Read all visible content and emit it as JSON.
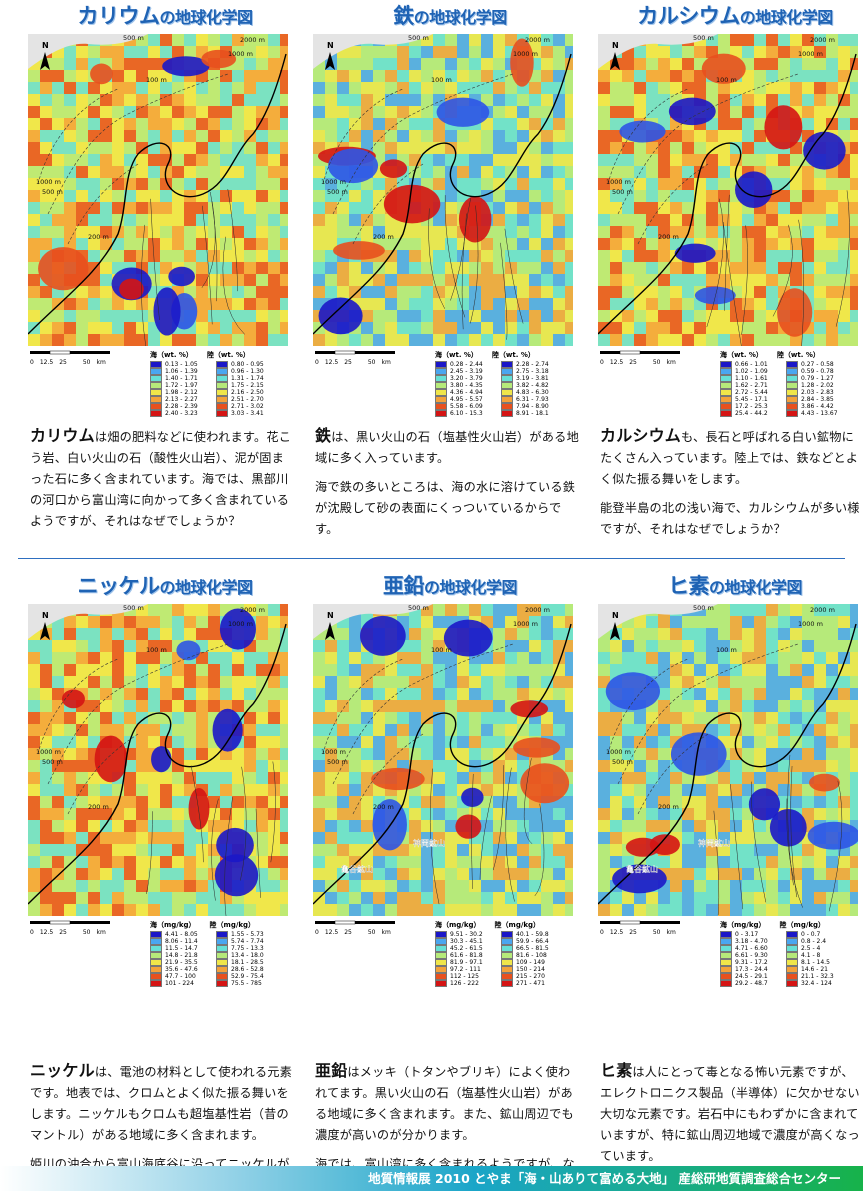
{
  "colors": {
    "sea": [
      "#1b17c8",
      "#2e55e6",
      "#4aa6f0",
      "#66e0d6",
      "#b6ea7a",
      "#f0e64a",
      "#f4a23a",
      "#e8501e",
      "#d41414"
    ],
    "land": [
      "#1b17c8",
      "#2e55e6",
      "#4aa6f0",
      "#66e0d6",
      "#b6ea7a",
      "#f0e64a",
      "#f4a23a",
      "#e8501e",
      "#d41414"
    ]
  },
  "map_labels": {
    "north": "N",
    "c500": "500 m",
    "c2000": "2000 m",
    "c1000": "1000 m",
    "c100": "100 m",
    "c200": "200 m"
  },
  "scale": {
    "t0": "0",
    "t1": "12.5",
    "t2": "25",
    "t3": "50",
    "unit": "km"
  },
  "panels": [
    {
      "title_el": "カリウム",
      "title_suffix": "の地球化学図",
      "sea_head": "海（wt. %）",
      "land_head": "陸（wt. %）",
      "sea": [
        "0.13 - 1.05",
        "1.06 - 1.39",
        "1.40 - 1.71",
        "1.72 - 1.97",
        "1.98 - 2.12",
        "2.13 - 2.27",
        "2.28 - 2.39",
        "2.40 - 3.23"
      ],
      "land": [
        "0.80 - 0.95",
        "0.96 - 1.30",
        "1.31 - 1.74",
        "1.75 - 2.15",
        "2.16 - 2.50",
        "2.51 - 2.70",
        "2.71 - 3.02",
        "3.03 - 3.41"
      ],
      "desc_el": "カリウム",
      "desc_p1": "は畑の肥料などに使われます。花こう岩、白い火山の石（酸性火山岩）、泥が固まった石に多く含まれています。海では、黒部川の河口から富山湾に向かって多く含まれているようですが、それはなぜでしょうか？",
      "desc_p2": ""
    },
    {
      "title_el": "鉄",
      "title_suffix": "の地球化学図",
      "sea_head": "海（wt. %）",
      "land_head": "陸（wt. %）",
      "sea": [
        "0.28 - 2.44",
        "2.45 - 3.19",
        "3.20 - 3.79",
        "3.80 - 4.35",
        "4.36 - 4.94",
        "4.95 - 5.57",
        "5.58 - 6.09",
        "6.10 - 15.3"
      ],
      "land": [
        "2.28 - 2.74",
        "2.75 - 3.18",
        "3.19 - 3.81",
        "3.82 - 4.82",
        "4.83 - 6.30",
        "6.31 - 7.93",
        "7.94 - 8.90",
        "8.91 - 18.1"
      ],
      "desc_el": "鉄",
      "desc_p1": "は、黒い火山の石（塩基性火山岩）がある地域に多く入っています。",
      "desc_p2": "海で鉄の多いところは、海の水に溶けている鉄が沈殿して砂の表面にくっついているからです。"
    },
    {
      "title_el": "カルシウム",
      "title_suffix": "の地球化学図",
      "sea_head": "海（wt. %）",
      "land_head": "陸（wt. %）",
      "sea": [
        "0.66 - 1.01",
        "1.02 - 1.09",
        "1.10 - 1.61",
        "1.62 - 2.71",
        "2.72 - 5.44",
        "5.45 - 17.1",
        "17.2 - 25.3",
        "25.4 - 44.2"
      ],
      "land": [
        "0.27 - 0.58",
        "0.59 - 0.78",
        "0.79 - 1.27",
        "1.28 - 2.02",
        "2.03 - 2.83",
        "2.84 - 3.85",
        "3.86 - 4.42",
        "4.43 - 13.67"
      ],
      "desc_el": "カルシウム",
      "desc_p1": "も、長石と呼ばれる白い鉱物にたくさん入っています。陸上では、鉄などとよく似た振る舞いをします。",
      "desc_p2": "能登半島の北の浅い海で、カルシウムが多い様ですが、それはなぜでしょうか？"
    },
    {
      "title_el": "ニッケル",
      "title_suffix": "の地球化学図",
      "sea_head": "海（mg/kg）",
      "land_head": "陸（mg/kg）",
      "sea": [
        "4.41 - 8.05",
        "8.06 - 11.4",
        "11.5 - 14.7",
        "14.8 - 21.8",
        "21.9 - 35.5",
        "35.6 - 47.6",
        "47.7 - 100",
        "101 - 224"
      ],
      "land": [
        "1.55 - 5.73",
        "5.74 - 7.74",
        "7.75 - 13.3",
        "13.4 - 18.0",
        "18.1 - 28.5",
        "28.6 - 52.8",
        "52.9 - 75.4",
        "75.5 - 785"
      ],
      "desc_el": "ニッケル",
      "desc_p1": "は、電池の材料として使われる元素です。地表では、クロムとよく似た振る舞いをします。ニッケルもクロムも超塩基性岩（昔のマントル）がある地域に多く含まれます。",
      "desc_p2": "姫川の沖合から富山海底谷に沿ってニッケルが多いのは、なぜでしょうか？"
    },
    {
      "title_el": "亜鉛",
      "title_suffix": "の地球化学図",
      "sea_head": "海（mg/kg）",
      "land_head": "陸（mg/kg）",
      "sea": [
        "9.51 - 30.2",
        "30.3 - 45.1",
        "45.2 - 61.5",
        "61.6 - 81.8",
        "81.9 - 97.1",
        "97.2 - 111",
        "112 - 125",
        "126 - 222"
      ],
      "land": [
        "40.1 - 59.8",
        "59.9 - 66.4",
        "66.5 - 81.5",
        "81.6 - 108",
        "109 - 149",
        "150 - 214",
        "215 - 270",
        "271 - 471"
      ],
      "desc_el": "亜鉛",
      "desc_p1": "はメッキ（トタンやブリキ）によく使われてます。黒い火山の石（塩基性火山岩）がある地域に多く含まれます。また、鉱山周辺でも濃度が高いのが分かります。",
      "desc_p2": "海では、富山湾に多く含まれるようですが、なぜでしょうか？",
      "mines": [
        "神岡鉱山",
        "亀谷鉱山"
      ]
    },
    {
      "title_el": "ヒ素",
      "title_suffix": "の地球化学図",
      "sea_head": "海（mg/kg）",
      "land_head": "陸（mg/kg）",
      "sea": [
        "0 - 3.17",
        "3.18 - 4.70",
        "4.71 - 6.60",
        "6.61 - 9.30",
        "9.31 - 17.2",
        "17.3 - 24.4",
        "24.5 - 29.1",
        "29.2 - 48.7"
      ],
      "land": [
        "0 - 0.7",
        "0.8 - 2.4",
        "2.5 - 4",
        "4.1 - 8",
        "8.1 - 14.5",
        "14.6 - 21",
        "21.1 - 32.3",
        "32.4 - 124"
      ],
      "desc_el": "ヒ素",
      "desc_p1": "は人にとって毒となる怖い元素ですが、エレクトロニクス製品（半導体）に欠かせない大切な元素です。岩石中にもわずかに含まれていますが、特に鉱山周辺地域で濃度が高くなっています。",
      "desc_p2": "",
      "mines": [
        "神岡鉱山",
        "亀谷鉱山"
      ]
    }
  ],
  "footer": "地質情報展 2010 とやま「海・山ありて富める大地」 産総研地質調査総合センター"
}
